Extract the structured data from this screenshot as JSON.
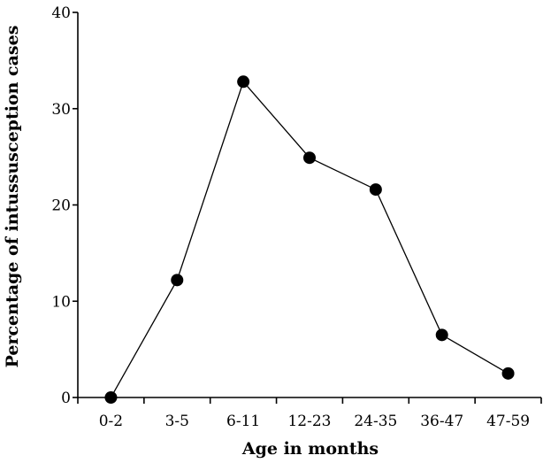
{
  "chart_data": {
    "type": "line",
    "title": "",
    "xlabel": "Age in months",
    "ylabel": "Percentage of intussusception cases",
    "categories": [
      "0-2",
      "3-5",
      "6-11",
      "12-23",
      "24-35",
      "36-47",
      "47-59"
    ],
    "series": [
      {
        "values": [
          0,
          12.2,
          32.8,
          24.9,
          21.6,
          6.5,
          2.5
        ]
      }
    ],
    "ylim": [
      0,
      40
    ],
    "yticks": [
      0,
      10,
      20,
      30,
      40
    ],
    "grid": false,
    "legend": "none",
    "colors": {
      "line": "#000000",
      "marker": "#000000"
    }
  }
}
